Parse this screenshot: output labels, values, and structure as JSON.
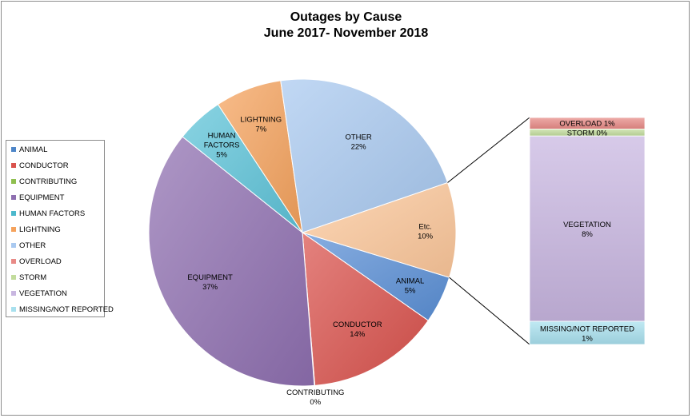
{
  "chart_data": {
    "type": "pie",
    "title": "Outages by Cause",
    "subtitle": "June 2017- November 2018",
    "main_pie": [
      {
        "label": "ANIMAL",
        "value_label": "5%",
        "value": 5,
        "color": "#5a8fd6"
      },
      {
        "label": "CONDUCTOR",
        "value_label": "14%",
        "value": 14,
        "color": "#d9524c"
      },
      {
        "label": "CONTRIBUTING",
        "value_label": "0%",
        "value": 0.05,
        "color": "#8fbf4f"
      },
      {
        "label": "EQUIPMENT",
        "value_label": "37%",
        "value": 37,
        "color": "#8e6fb0"
      },
      {
        "label": "HUMAN FACTORS",
        "value_label": "5%",
        "value": 5,
        "color": "#5cc3d8"
      },
      {
        "label": "LIGHTNING",
        "value_label": "7%",
        "value": 7,
        "color": "#f5a25c"
      },
      {
        "label": "OTHER",
        "value_label": "22%",
        "value": 22,
        "color": "#a9c9f0"
      },
      {
        "label": "Etc.",
        "value_label": "10%",
        "value": 10,
        "color": "#fcc79a"
      }
    ],
    "etc_breakdown": [
      {
        "label": "OVERLOAD",
        "value_label": "1%",
        "value": 0.5,
        "color": "#e88a86"
      },
      {
        "label": "STORM",
        "value_label": "0%",
        "value": 0.3,
        "color": "#c2dc9c"
      },
      {
        "label": "VEGETATION",
        "value_label": "8%",
        "value": 8.0,
        "color": "#c8b6e0"
      },
      {
        "label": "MISSING/NOT REPORTED",
        "value_label": "1%",
        "value": 1.0,
        "color": "#a8e0ee"
      }
    ],
    "legend": {
      "position": "left",
      "items": [
        {
          "label": "ANIMAL",
          "color": "#4e86c8"
        },
        {
          "label": "CONDUCTOR",
          "color": "#d9524c"
        },
        {
          "label": "CONTRIBUTING",
          "color": "#8fbf4f"
        },
        {
          "label": "EQUIPMENT",
          "color": "#8e6fb0"
        },
        {
          "label": "HUMAN FACTORS",
          "color": "#4bb8cc"
        },
        {
          "label": "LIGHTNING",
          "color": "#f5a25c"
        },
        {
          "label": "OTHER",
          "color": "#a9c9f0"
        },
        {
          "label": "OVERLOAD",
          "color": "#e88a86"
        },
        {
          "label": "STORM",
          "color": "#c2dc9c"
        },
        {
          "label": "VEGETATION",
          "color": "#c8b6e0"
        },
        {
          "label": "MISSING/NOT REPORTED",
          "color": "#a8e0ee"
        }
      ]
    }
  }
}
